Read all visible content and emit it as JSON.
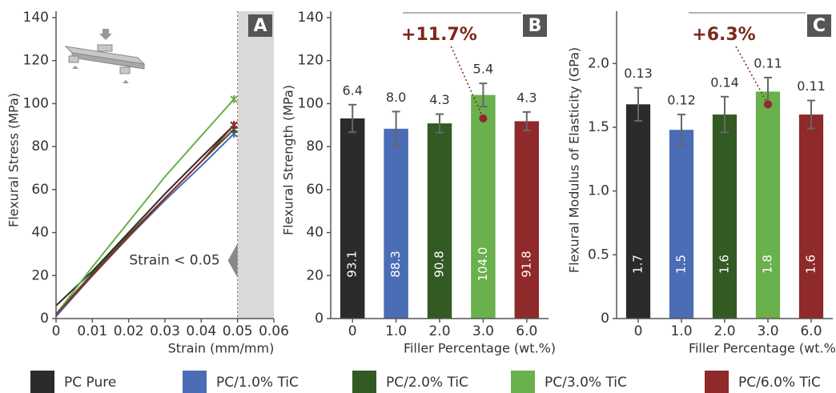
{
  "charts": [
    {
      "type": "line",
      "label": "A",
      "xlabel": "Strain (mm/mm)",
      "ylabel": "Flexural Stress (MPa)",
      "x": [
        0,
        0.01,
        0.02,
        0.03,
        0.04,
        0.049
      ],
      "series": [
        {
          "name": "PC Pure",
          "color": "#2b2b2b",
          "values": [
            6,
            22,
            40,
            58,
            75,
            90
          ]
        },
        {
          "name": "PC/1.0% TiC",
          "color": "#4a6db5",
          "values": [
            1,
            20,
            38,
            55,
            71,
            86
          ]
        },
        {
          "name": "PC/2.0% TiC",
          "color": "#335a22",
          "values": [
            2,
            21,
            39,
            56,
            73,
            88
          ]
        },
        {
          "name": "PC/3.0% TiC",
          "color": "#6ab04c",
          "values": [
            2,
            24,
            45,
            66,
            85,
            102
          ]
        },
        {
          "name": "PC/6.0% TiC",
          "color": "#8e2a2a",
          "values": [
            2,
            20,
            38,
            56,
            73,
            90
          ]
        }
      ],
      "xlim": [
        0,
        0.06
      ],
      "xticks": [
        0,
        0.01,
        0.02,
        0.03,
        0.04,
        0.05,
        0.06
      ],
      "ylim": [
        0,
        140
      ],
      "yticks": [
        0,
        20,
        40,
        60,
        80,
        100,
        120,
        140
      ],
      "threshold_x": 0.05,
      "annotation": "Strain < 0.05"
    },
    {
      "type": "bar",
      "label": "B",
      "xlabel": "Filler Percentage (wt.%)",
      "ylabel": "Flexural Strength (MPa)",
      "categories": [
        "0",
        "1.0",
        "2.0",
        "3.0",
        "6.0"
      ],
      "values": [
        93.1,
        88.3,
        90.8,
        104.0,
        91.8
      ],
      "value_labels": [
        "93.1",
        "88.3",
        "90.8",
        "104.0",
        "91.8"
      ],
      "errors": [
        6.4,
        8.0,
        4.3,
        5.4,
        4.3
      ],
      "error_labels": [
        "6.4",
        "8.0",
        "4.3",
        "5.4",
        "4.3"
      ],
      "colors": [
        "#2b2b2b",
        "#4a6db5",
        "#335a22",
        "#6ab04c",
        "#8e2a2a"
      ],
      "ylim": [
        0,
        140
      ],
      "yticks": [
        0,
        20,
        40,
        60,
        80,
        100,
        120,
        140
      ],
      "annotation": "+11.7%"
    },
    {
      "type": "bar",
      "label": "C",
      "xlabel": "Filler Percentage (wt.%)",
      "ylabel": "Flexural Modulus of Elasticity (GPa)",
      "categories": [
        "0",
        "1.0",
        "2.0",
        "3.0",
        "6.0"
      ],
      "values": [
        1.68,
        1.48,
        1.6,
        1.78,
        1.6
      ],
      "value_labels": [
        "1.7",
        "1.5",
        "1.6",
        "1.8",
        "1.6"
      ],
      "errors": [
        0.13,
        0.12,
        0.14,
        0.11,
        0.11
      ],
      "error_labels": [
        "0.13",
        "0.12",
        "0.14",
        "0.11",
        "0.11"
      ],
      "colors": [
        "#2b2b2b",
        "#4a6db5",
        "#335a22",
        "#6ab04c",
        "#8e2a2a"
      ],
      "ylim": [
        0,
        2.36
      ],
      "yticks": [
        0,
        0.5,
        {
          "value": 1,
          "label": "1.0"
        },
        1.5,
        {
          "value": 2,
          "label": "2.0"
        }
      ],
      "annotation": "+6.3%"
    }
  ]
}
